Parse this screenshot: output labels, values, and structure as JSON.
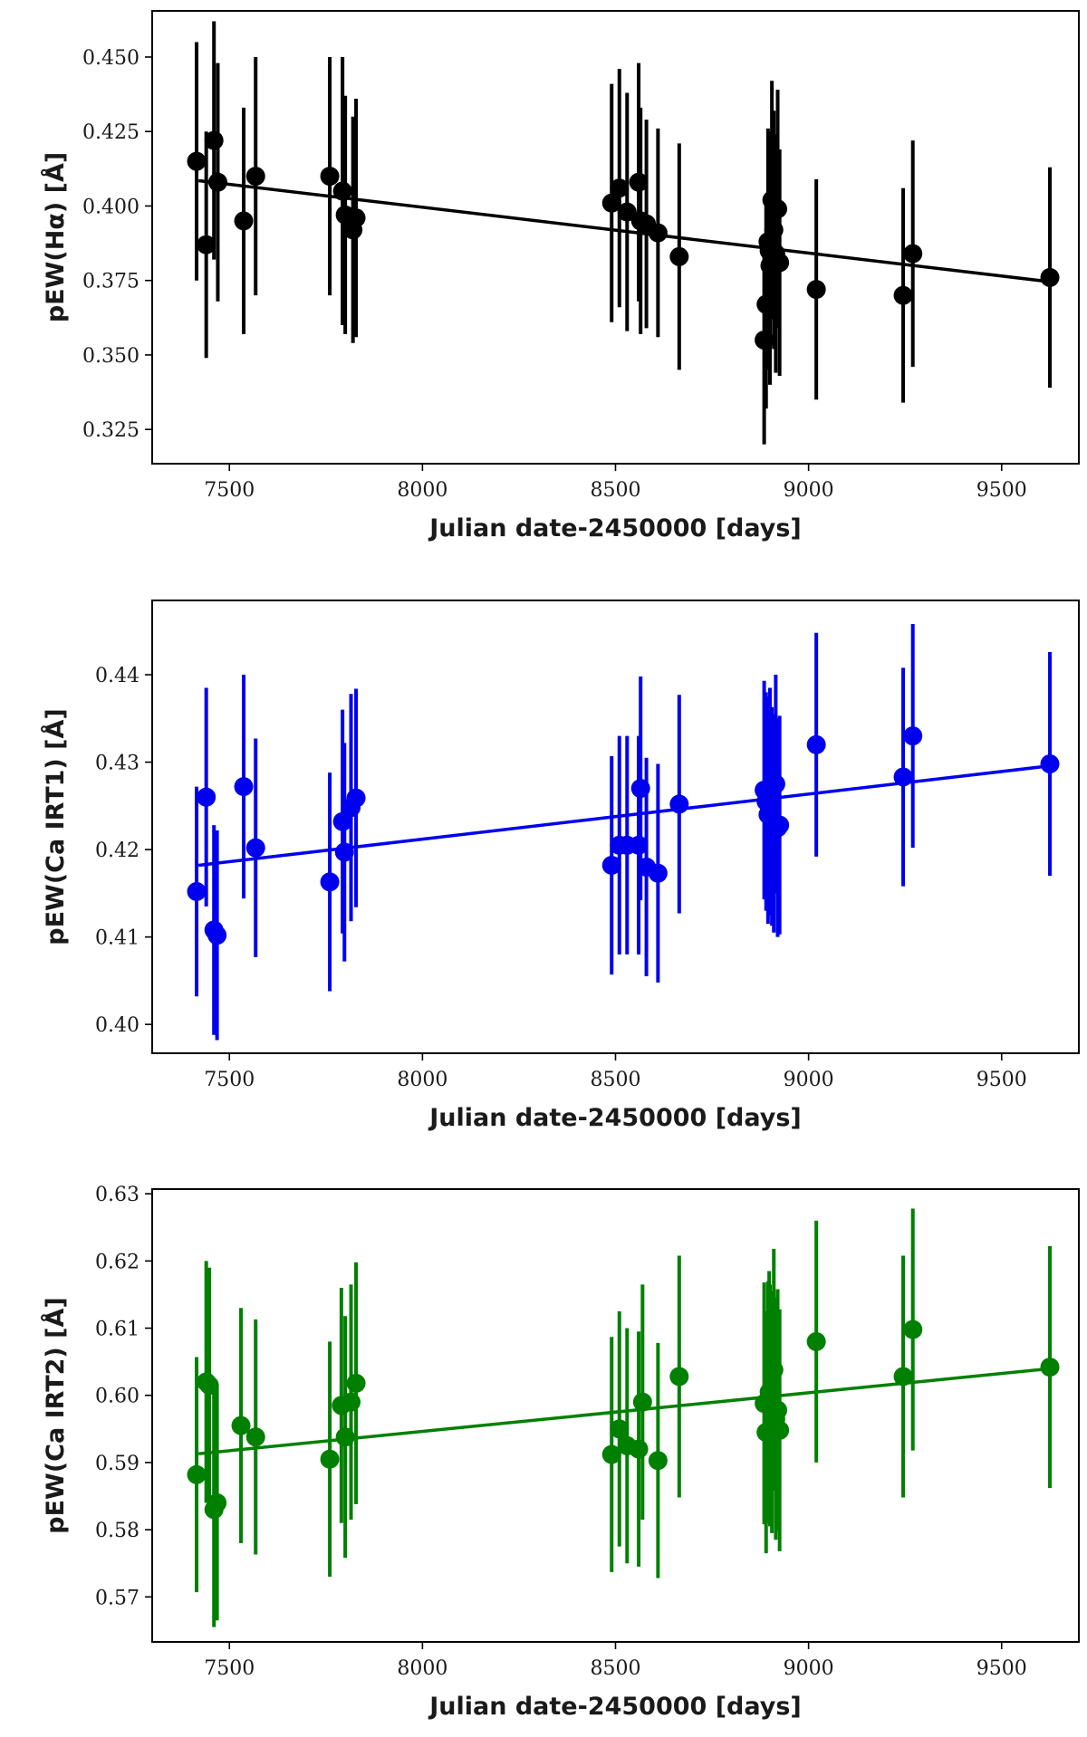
{
  "chart_data": [
    {
      "type": "scatter",
      "title": "",
      "color": "#000000",
      "xlabel": "Julian date-2450000 [days]",
      "ylabel": "pEW(Hα) [Å]",
      "xlim": [
        7300,
        9700
      ],
      "ylim": [
        0.3135,
        0.4655
      ],
      "xticks": [
        7500,
        8000,
        8500,
        9000,
        9500
      ],
      "yticks": [
        0.325,
        0.35,
        0.375,
        0.4,
        0.425,
        0.45
      ],
      "ytick_labels": [
        "0.325",
        "0.350",
        "0.375",
        "0.400",
        "0.425",
        "0.450"
      ],
      "trend": {
        "x": [
          7420,
          9630
        ],
        "y": [
          0.4085,
          0.3745
        ]
      },
      "series": [
        {
          "name": "pEW(Hα)",
          "x": [
            7415,
            7440,
            7460,
            7470,
            7537,
            7568,
            7760,
            7793,
            7800,
            7820,
            7828,
            8490,
            8510,
            8530,
            8560,
            8565,
            8580,
            8610,
            8665,
            8885,
            8890,
            8895,
            8898,
            8900,
            8905,
            8910,
            8915,
            8920,
            8925,
            9020,
            9245,
            9270,
            9625
          ],
          "y": [
            0.415,
            0.387,
            0.422,
            0.408,
            0.395,
            0.41,
            0.41,
            0.405,
            0.397,
            0.392,
            0.396,
            0.401,
            0.406,
            0.398,
            0.408,
            0.395,
            0.394,
            0.391,
            0.383,
            0.355,
            0.367,
            0.388,
            0.385,
            0.38,
            0.402,
            0.392,
            0.384,
            0.399,
            0.381,
            0.372,
            0.37,
            0.384,
            0.376
          ],
          "yerr": [
            0.04,
            0.038,
            0.04,
            0.04,
            0.038,
            0.04,
            0.04,
            0.045,
            0.04,
            0.038,
            0.04,
            0.04,
            0.04,
            0.04,
            0.04,
            0.038,
            0.035,
            0.035,
            0.038,
            0.035,
            0.035,
            0.038,
            0.04,
            0.04,
            0.04,
            0.04,
            0.04,
            0.04,
            0.038,
            0.037,
            0.036,
            0.038,
            0.037
          ]
        }
      ]
    },
    {
      "type": "scatter",
      "title": "",
      "color": "#0000ee",
      "xlabel": "Julian date-2450000 [days]",
      "ylabel": "pEW(Ca IRT1) [Å]",
      "xlim": [
        7300,
        9700
      ],
      "ylim": [
        0.3967,
        0.4485
      ],
      "xticks": [
        7500,
        8000,
        8500,
        9000,
        9500
      ],
      "yticks": [
        0.4,
        0.41,
        0.42,
        0.43,
        0.44
      ],
      "ytick_labels": [
        "0.40",
        "0.41",
        "0.42",
        "0.43",
        "0.44"
      ],
      "trend": {
        "x": [
          7420,
          9630
        ],
        "y": [
          0.4182,
          0.4296
        ]
      },
      "series": [
        {
          "name": "pEW(Ca IRT1)",
          "x": [
            7415,
            7440,
            7460,
            7468,
            7537,
            7568,
            7760,
            7793,
            7798,
            7815,
            7828,
            8490,
            8510,
            8530,
            8560,
            8565,
            8580,
            8610,
            8665,
            8885,
            8890,
            8895,
            8898,
            8900,
            8905,
            8910,
            8915,
            8920,
            8925,
            9020,
            9245,
            9270,
            9625
          ],
          "y": [
            0.4152,
            0.426,
            0.4108,
            0.4102,
            0.4272,
            0.4202,
            0.4163,
            0.4232,
            0.4197,
            0.4248,
            0.4259,
            0.4182,
            0.4205,
            0.4205,
            0.4205,
            0.427,
            0.418,
            0.4173,
            0.4252,
            0.4268,
            0.4255,
            0.424,
            0.425,
            0.426,
            0.4238,
            0.423,
            0.4275,
            0.4225,
            0.4228,
            0.432,
            0.4283,
            0.433,
            0.4298
          ],
          "yerr": [
            0.012,
            0.0125,
            0.012,
            0.012,
            0.0128,
            0.0125,
            0.0125,
            0.0128,
            0.0125,
            0.013,
            0.0125,
            0.0125,
            0.0125,
            0.0125,
            0.0125,
            0.0128,
            0.0125,
            0.0125,
            0.0125,
            0.0125,
            0.0125,
            0.0125,
            0.0125,
            0.0125,
            0.0125,
            0.0125,
            0.0125,
            0.0125,
            0.0125,
            0.0128,
            0.0125,
            0.0128,
            0.0128
          ]
        }
      ]
    },
    {
      "type": "scatter",
      "title": "",
      "color": "#008000",
      "xlabel": "Julian date-2450000 [days]",
      "ylabel": "pEW(Ca IRT2) [Å]",
      "xlim": [
        7300,
        9700
      ],
      "ylim": [
        0.5633,
        0.6307
      ],
      "xticks": [
        7500,
        8000,
        8500,
        9000,
        9500
      ],
      "yticks": [
        0.57,
        0.58,
        0.59,
        0.6,
        0.61,
        0.62,
        0.63
      ],
      "ytick_labels": [
        "0.57",
        "0.58",
        "0.59",
        "0.60",
        "0.61",
        "0.62",
        "0.63"
      ],
      "trend": {
        "x": [
          7420,
          9630
        ],
        "y": [
          0.5913,
          0.604
        ]
      },
      "series": [
        {
          "name": "pEW(Ca IRT2)",
          "x": [
            7415,
            7440,
            7448,
            7460,
            7468,
            7530,
            7568,
            7760,
            7790,
            7800,
            7815,
            7828,
            8490,
            8510,
            8530,
            8560,
            8570,
            8610,
            8665,
            8885,
            8890,
            8895,
            8898,
            8900,
            8905,
            8910,
            8915,
            8920,
            8925,
            9020,
            9245,
            9270,
            9625
          ],
          "y": [
            0.5882,
            0.602,
            0.6015,
            0.583,
            0.584,
            0.5955,
            0.5938,
            0.5905,
            0.5985,
            0.5938,
            0.599,
            0.6018,
            0.5912,
            0.595,
            0.5925,
            0.592,
            0.599,
            0.5903,
            0.6028,
            0.5988,
            0.5945,
            0.599,
            0.6005,
            0.5985,
            0.5975,
            0.6038,
            0.5965,
            0.5978,
            0.5948,
            0.608,
            0.6028,
            0.6098,
            0.6042
          ],
          "yerr": [
            0.0175,
            0.018,
            0.0175,
            0.0175,
            0.0175,
            0.0175,
            0.0175,
            0.0175,
            0.0175,
            0.018,
            0.0175,
            0.018,
            0.0175,
            0.0175,
            0.0175,
            0.0175,
            0.0175,
            0.0175,
            0.018,
            0.018,
            0.018,
            0.018,
            0.018,
            0.018,
            0.018,
            0.018,
            0.018,
            0.018,
            0.018,
            0.018,
            0.018,
            0.018,
            0.018
          ]
        }
      ]
    }
  ]
}
